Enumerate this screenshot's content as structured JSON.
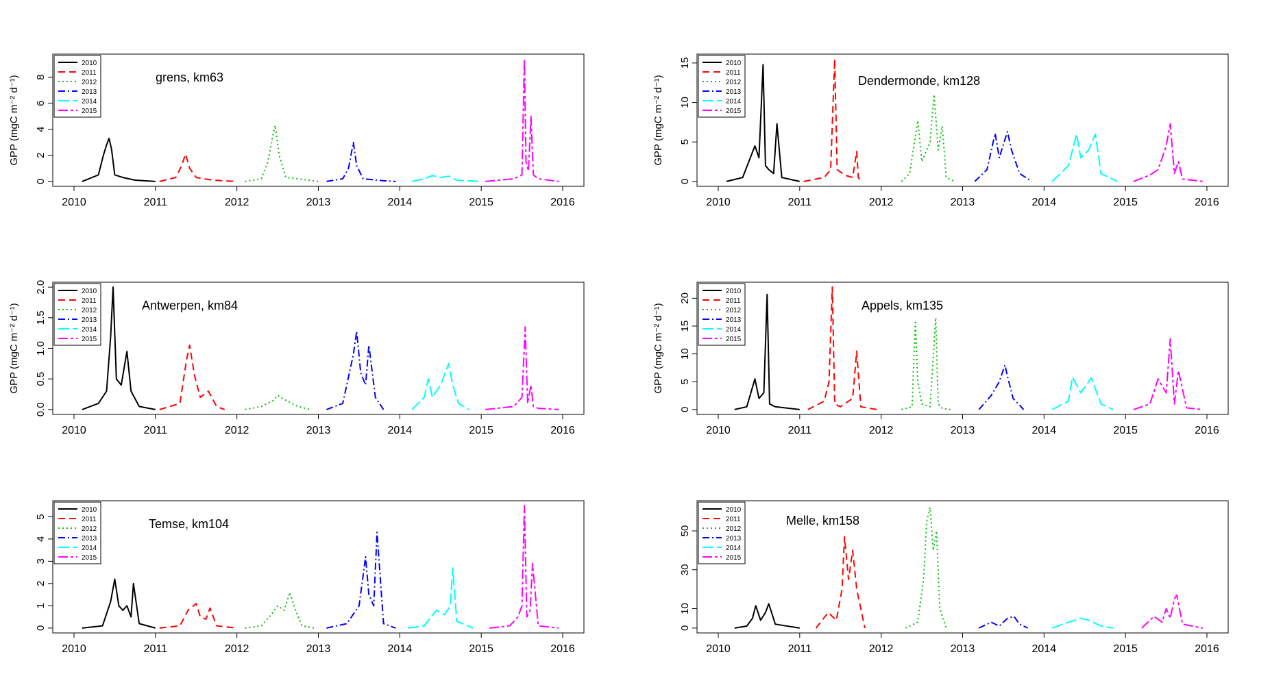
{
  "chart_data": [
    {
      "type": "line",
      "title": "grens, km63",
      "ylabel": "GPP (mgC m⁻² d⁻¹)",
      "xlim": [
        2010,
        2016
      ],
      "ylim": [
        0,
        9.4
      ],
      "yticks": [
        0,
        2,
        4,
        6,
        8
      ],
      "xticks": [
        2010,
        2011,
        2012,
        2013,
        2014,
        2015,
        2016
      ],
      "legend": [
        "2010",
        "2011",
        "2012",
        "2013",
        "2014",
        "2015"
      ],
      "legend_position": "top-left",
      "series": [
        {
          "name": "2010",
          "x": [
            2010.1,
            2010.3,
            2010.36,
            2010.4,
            2010.43,
            2010.46,
            2010.5,
            2010.6,
            2010.75,
            2011.0
          ],
          "y": [
            0,
            0.5,
            2.0,
            2.8,
            3.3,
            2.5,
            0.5,
            0.3,
            0.1,
            0
          ]
        },
        {
          "name": "2011",
          "x": [
            2011.05,
            2011.25,
            2011.32,
            2011.37,
            2011.42,
            2011.5,
            2011.7,
            2012.0
          ],
          "y": [
            0,
            0.3,
            1.2,
            2.1,
            1.0,
            0.3,
            0.1,
            0
          ]
        },
        {
          "name": "2012",
          "x": [
            2012.1,
            2012.3,
            2012.38,
            2012.44,
            2012.47,
            2012.52,
            2012.6,
            2012.75,
            2013.0
          ],
          "y": [
            0,
            0.2,
            1.5,
            3.5,
            4.3,
            2.0,
            0.3,
            0.2,
            0
          ]
        },
        {
          "name": "2013",
          "x": [
            2013.1,
            2013.3,
            2013.37,
            2013.43,
            2013.47,
            2013.55,
            2013.8,
            2013.95
          ],
          "y": [
            0,
            0.2,
            1.0,
            3.0,
            1.2,
            0.2,
            0.05,
            0
          ]
        },
        {
          "name": "2014",
          "x": [
            2014.15,
            2014.3,
            2014.4,
            2014.5,
            2014.6,
            2014.7,
            2015.0
          ],
          "y": [
            0,
            0.2,
            0.45,
            0.3,
            0.4,
            0.1,
            0
          ]
        },
        {
          "name": "2015",
          "x": [
            2015.05,
            2015.4,
            2015.5,
            2015.53,
            2015.55,
            2015.58,
            2015.61,
            2015.64,
            2015.7,
            2015.95
          ],
          "y": [
            0,
            0.2,
            0.5,
            9.4,
            1.5,
            0.8,
            5.0,
            0.5,
            0.2,
            0
          ]
        }
      ]
    },
    {
      "type": "line",
      "title": "Dendermonde, km128",
      "ylabel": "GPP (mgC m⁻² d⁻¹)",
      "xlim": [
        2010,
        2016
      ],
      "ylim": [
        0,
        15.5
      ],
      "yticks": [
        0,
        5,
        10,
        15
      ],
      "xticks": [
        2010,
        2011,
        2012,
        2013,
        2014,
        2015,
        2016
      ],
      "legend": [
        "2010",
        "2011",
        "2012",
        "2013",
        "2014",
        "2015"
      ],
      "legend_position": "top-left",
      "series": [
        {
          "name": "2010",
          "x": [
            2010.1,
            2010.3,
            2010.45,
            2010.5,
            2010.55,
            2010.58,
            2010.62,
            2010.68,
            2010.72,
            2010.78,
            2011.0
          ],
          "y": [
            0,
            0.5,
            4.5,
            3.0,
            14.8,
            2.0,
            1.5,
            1.0,
            7.3,
            0.5,
            0
          ]
        },
        {
          "name": "2011",
          "x": [
            2011.05,
            2011.3,
            2011.38,
            2011.43,
            2011.46,
            2011.55,
            2011.65,
            2011.7,
            2011.72,
            2011.75
          ],
          "y": [
            0,
            0.5,
            1.5,
            15.5,
            1.5,
            0.8,
            0.5,
            3.8,
            0.5,
            0
          ]
        },
        {
          "name": "2012",
          "x": [
            2012.25,
            2012.35,
            2012.45,
            2012.5,
            2012.6,
            2012.65,
            2012.7,
            2012.75,
            2012.8,
            2012.9
          ],
          "y": [
            0,
            1.0,
            7.7,
            2.5,
            5.0,
            11.0,
            4.0,
            7.0,
            0.5,
            0
          ]
        },
        {
          "name": "2013",
          "x": [
            2013.15,
            2013.3,
            2013.4,
            2013.45,
            2013.55,
            2013.6,
            2013.7,
            2013.85
          ],
          "y": [
            0,
            1.5,
            6.1,
            3.0,
            6.3,
            4.0,
            1.0,
            0
          ]
        },
        {
          "name": "2014",
          "x": [
            2014.1,
            2014.3,
            2014.4,
            2014.45,
            2014.55,
            2014.63,
            2014.7,
            2014.9
          ],
          "y": [
            0,
            2.0,
            6.0,
            3.0,
            4.0,
            6.0,
            1.0,
            0
          ]
        },
        {
          "name": "2015",
          "x": [
            2015.1,
            2015.3,
            2015.4,
            2015.5,
            2015.55,
            2015.6,
            2015.65,
            2015.7,
            2015.95
          ],
          "y": [
            0,
            0.8,
            1.5,
            4.5,
            7.3,
            1.0,
            2.5,
            0.3,
            0
          ]
        }
      ]
    },
    {
      "type": "line",
      "title": "Antwerpen, km84",
      "ylabel": "GPP (mgC m⁻² d⁻¹)",
      "xlim": [
        2010,
        2016
      ],
      "ylim": [
        0,
        2.0
      ],
      "yticks": [
        0.0,
        0.5,
        1.0,
        1.5,
        2.0
      ],
      "xticks": [
        2010,
        2011,
        2012,
        2013,
        2014,
        2015,
        2016
      ],
      "legend": [
        "2010",
        "2011",
        "2012",
        "2013",
        "2014",
        "2015"
      ],
      "legend_position": "top-left",
      "series": [
        {
          "name": "2010",
          "x": [
            2010.1,
            2010.3,
            2010.4,
            2010.45,
            2010.48,
            2010.52,
            2010.58,
            2010.65,
            2010.7,
            2010.8,
            2011.0
          ],
          "y": [
            0,
            0.1,
            0.3,
            1.2,
            2.0,
            0.5,
            0.4,
            0.95,
            0.3,
            0.05,
            0
          ]
        },
        {
          "name": "2011",
          "x": [
            2011.05,
            2011.3,
            2011.38,
            2011.42,
            2011.48,
            2011.55,
            2011.65,
            2011.75,
            2011.85
          ],
          "y": [
            0,
            0.1,
            0.8,
            1.05,
            0.55,
            0.2,
            0.3,
            0.05,
            0
          ]
        },
        {
          "name": "2012",
          "x": [
            2012.1,
            2012.3,
            2012.45,
            2012.5,
            2012.6,
            2012.75,
            2012.9
          ],
          "y": [
            0,
            0.05,
            0.15,
            0.23,
            0.15,
            0.05,
            0
          ]
        },
        {
          "name": "2013",
          "x": [
            2013.1,
            2013.3,
            2013.43,
            2013.47,
            2013.52,
            2013.58,
            2013.62,
            2013.7,
            2013.8
          ],
          "y": [
            0,
            0.1,
            0.9,
            1.28,
            0.6,
            0.4,
            1.05,
            0.2,
            0
          ]
        },
        {
          "name": "2014",
          "x": [
            2014.15,
            2014.3,
            2014.35,
            2014.4,
            2014.5,
            2014.6,
            2014.65,
            2014.72,
            2014.85
          ],
          "y": [
            0,
            0.2,
            0.5,
            0.2,
            0.4,
            0.75,
            0.4,
            0.1,
            0
          ]
        },
        {
          "name": "2015",
          "x": [
            2015.05,
            2015.4,
            2015.5,
            2015.54,
            2015.57,
            2015.61,
            2015.64,
            2015.7,
            2015.95
          ],
          "y": [
            0,
            0.05,
            0.2,
            1.35,
            0.1,
            0.4,
            0.05,
            0.02,
            0
          ]
        }
      ]
    },
    {
      "type": "line",
      "title": "Appels, km135",
      "ylabel": "GPP (mgC m⁻² d⁻¹)",
      "xlim": [
        2010,
        2016
      ],
      "ylim": [
        0,
        22
      ],
      "yticks": [
        0,
        5,
        10,
        15,
        20
      ],
      "xticks": [
        2010,
        2011,
        2012,
        2013,
        2014,
        2015,
        2016
      ],
      "legend": [
        "2010",
        "2011",
        "2012",
        "2013",
        "2014",
        "2015"
      ],
      "legend_position": "top-left",
      "series": [
        {
          "name": "2010",
          "x": [
            2010.2,
            2010.35,
            2010.45,
            2010.5,
            2010.56,
            2010.6,
            2010.63,
            2010.7,
            2011.0
          ],
          "y": [
            0,
            0.5,
            5.5,
            2.0,
            3.0,
            20.7,
            1.0,
            0.5,
            0
          ]
        },
        {
          "name": "2011",
          "x": [
            2011.1,
            2011.3,
            2011.36,
            2011.4,
            2011.43,
            2011.5,
            2011.65,
            2011.7,
            2011.75,
            2011.95
          ],
          "y": [
            0,
            1.5,
            5.0,
            22.0,
            1.0,
            0.5,
            2.0,
            10.5,
            0.5,
            0
          ]
        },
        {
          "name": "2012",
          "x": [
            2012.25,
            2012.38,
            2012.42,
            2012.45,
            2012.5,
            2012.6,
            2012.67,
            2012.7,
            2012.75,
            2012.85
          ],
          "y": [
            0,
            0.5,
            16.0,
            5.0,
            1.0,
            0.5,
            16.5,
            1.0,
            0.2,
            0
          ]
        },
        {
          "name": "2013",
          "x": [
            2013.2,
            2013.35,
            2013.45,
            2013.52,
            2013.55,
            2013.62,
            2013.75
          ],
          "y": [
            0,
            2.5,
            5.0,
            8.0,
            6.0,
            2.0,
            0
          ]
        },
        {
          "name": "2014",
          "x": [
            2014.1,
            2014.3,
            2014.35,
            2014.45,
            2014.5,
            2014.58,
            2014.7,
            2014.85
          ],
          "y": [
            0,
            1.5,
            5.8,
            3.0,
            4.0,
            5.7,
            1.0,
            0
          ]
        },
        {
          "name": "2015",
          "x": [
            2015.1,
            2015.3,
            2015.4,
            2015.5,
            2015.55,
            2015.6,
            2015.65,
            2015.75,
            2015.95
          ],
          "y": [
            0,
            1.0,
            5.5,
            3.0,
            12.7,
            1.0,
            7.0,
            0.3,
            0
          ]
        }
      ]
    },
    {
      "type": "line",
      "title": "Temse, km104",
      "ylabel": "",
      "xlim": [
        2010,
        2016
      ],
      "ylim": [
        0,
        5.5
      ],
      "yticks": [
        0,
        1,
        2,
        3,
        4,
        5
      ],
      "xticks": [
        2010,
        2011,
        2012,
        2013,
        2014,
        2015,
        2016
      ],
      "legend": [
        "2010",
        "2011",
        "2012",
        "2013",
        "2014",
        "2015"
      ],
      "legend_position": "top-left",
      "series": [
        {
          "name": "2010",
          "x": [
            2010.1,
            2010.35,
            2010.45,
            2010.5,
            2010.55,
            2010.6,
            2010.65,
            2010.7,
            2010.73,
            2010.8,
            2011.0
          ],
          "y": [
            0,
            0.1,
            1.2,
            2.2,
            1.0,
            0.8,
            1.0,
            0.5,
            2.0,
            0.2,
            0
          ]
        },
        {
          "name": "2011",
          "x": [
            2011.05,
            2011.3,
            2011.4,
            2011.5,
            2011.55,
            2011.62,
            2011.67,
            2011.75,
            2012.0
          ],
          "y": [
            0,
            0.1,
            0.8,
            1.1,
            0.5,
            0.4,
            0.9,
            0.1,
            0
          ]
        },
        {
          "name": "2012",
          "x": [
            2012.1,
            2012.3,
            2012.42,
            2012.5,
            2012.58,
            2012.65,
            2012.72,
            2012.8,
            2012.95
          ],
          "y": [
            0,
            0.1,
            0.6,
            1.0,
            0.8,
            1.6,
            0.8,
            0.1,
            0
          ]
        },
        {
          "name": "2013",
          "x": [
            2013.1,
            2013.35,
            2013.5,
            2013.58,
            2013.62,
            2013.68,
            2013.72,
            2013.8,
            2013.95
          ],
          "y": [
            0,
            0.2,
            1.0,
            3.2,
            1.5,
            1.0,
            4.3,
            0.2,
            0
          ]
        },
        {
          "name": "2014",
          "x": [
            2014.1,
            2014.3,
            2014.45,
            2014.55,
            2014.62,
            2014.65,
            2014.7,
            2014.9
          ],
          "y": [
            0,
            0.1,
            0.8,
            0.6,
            1.0,
            2.7,
            0.3,
            0
          ]
        },
        {
          "name": "2015",
          "x": [
            2015.1,
            2015.35,
            2015.45,
            2015.5,
            2015.53,
            2015.56,
            2015.6,
            2015.63,
            2015.7,
            2015.95
          ],
          "y": [
            0,
            0.1,
            0.5,
            1.0,
            5.5,
            0.5,
            0.8,
            2.9,
            0.1,
            0
          ]
        }
      ]
    },
    {
      "type": "line",
      "title": "Melle, km158",
      "ylabel": "",
      "xlim": [
        2010,
        2016
      ],
      "ylim": [
        0,
        63
      ],
      "yticks": [
        0,
        10,
        30,
        50
      ],
      "xticks": [
        2010,
        2011,
        2012,
        2013,
        2014,
        2015,
        2016
      ],
      "legend": [
        "2010",
        "2011",
        "2012",
        "2013",
        "2014",
        "2015"
      ],
      "legend_position": "top-left",
      "series": [
        {
          "name": "2010",
          "x": [
            2010.2,
            2010.35,
            2010.42,
            2010.46,
            2010.52,
            2010.58,
            2010.62,
            2010.7,
            2011.0
          ],
          "y": [
            0,
            1.0,
            5.0,
            11.5,
            4.0,
            8.0,
            12.5,
            2.0,
            0
          ]
        },
        {
          "name": "2011",
          "x": [
            2011.2,
            2011.35,
            2011.45,
            2011.52,
            2011.55,
            2011.6,
            2011.65,
            2011.7,
            2011.75,
            2011.8
          ],
          "y": [
            0,
            8.0,
            4.0,
            20.0,
            47.0,
            25.0,
            40.0,
            20.0,
            10.0,
            0
          ]
        },
        {
          "name": "2012",
          "x": [
            2012.3,
            2012.45,
            2012.52,
            2012.56,
            2012.6,
            2012.64,
            2012.68,
            2012.72,
            2012.8
          ],
          "y": [
            0,
            3.0,
            25.0,
            55.0,
            62.0,
            40.0,
            50.0,
            10.0,
            0
          ]
        },
        {
          "name": "2013",
          "x": [
            2013.2,
            2013.35,
            2013.45,
            2013.55,
            2013.63,
            2013.7,
            2013.8
          ],
          "y": [
            0,
            3.0,
            1.0,
            5.0,
            6.0,
            2.0,
            0
          ]
        },
        {
          "name": "2014",
          "x": [
            2014.1,
            2014.3,
            2014.45,
            2014.55,
            2014.7,
            2014.85
          ],
          "y": [
            0,
            3.0,
            5.0,
            4.0,
            1.0,
            0
          ]
        },
        {
          "name": "2015",
          "x": [
            2015.2,
            2015.35,
            2015.45,
            2015.5,
            2015.55,
            2015.6,
            2015.63,
            2015.7,
            2015.95
          ],
          "y": [
            0,
            6.0,
            3.0,
            10.0,
            5.0,
            15.0,
            17.0,
            2.0,
            0
          ]
        }
      ]
    }
  ],
  "colors": {
    "2010": "#000000",
    "2011": "#ff0000",
    "2012": "#00c000",
    "2013": "#0000ff",
    "2014": "#00ffff",
    "2015": "#ff00ff"
  }
}
